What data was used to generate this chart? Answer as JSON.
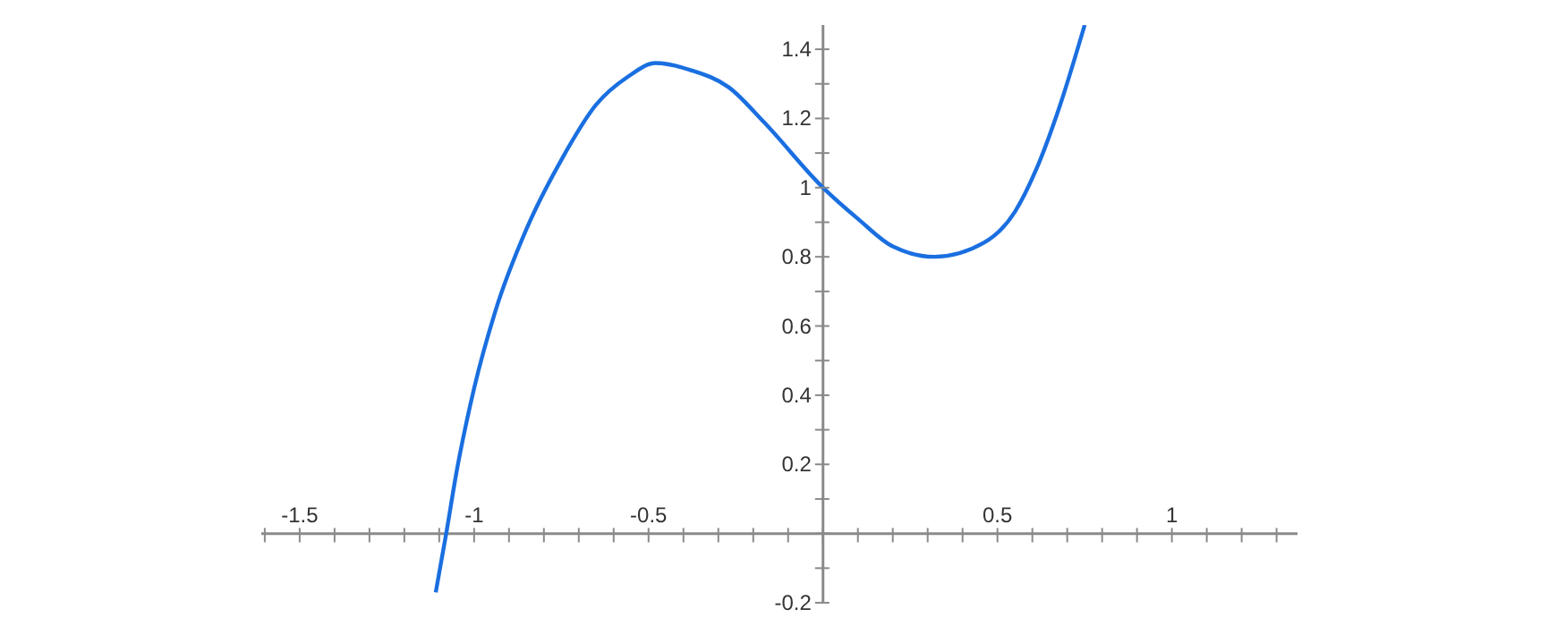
{
  "chart_data": {
    "type": "line",
    "color": "#1a6fe0",
    "line_style": "solid",
    "marker": "none",
    "grid": false,
    "x": [
      -1.11,
      -1.08,
      -1.05,
      -1.0,
      -0.94,
      -0.85,
      -0.75,
      -0.65,
      -0.56,
      -0.48,
      -0.38,
      -0.27,
      -0.17,
      0.0,
      0.1,
      0.2,
      0.32,
      0.46,
      0.55,
      0.61,
      0.68,
      0.75
    ],
    "values": [
      -0.17,
      0.0,
      0.18,
      0.42,
      0.64,
      0.88,
      1.08,
      1.24,
      1.32,
      1.36,
      1.34,
      1.29,
      1.19,
      1.0,
      0.91,
      0.83,
      0.8,
      0.84,
      0.93,
      1.05,
      1.24,
      1.47
    ],
    "xlim": [
      -1.61,
      1.36
    ],
    "ylim": [
      -0.2,
      1.47
    ],
    "xticks": [
      {
        "value": -1.6,
        "label": null
      },
      -1.5,
      {
        "value": -1.4,
        "label": null
      },
      {
        "value": -1.3,
        "label": null
      },
      {
        "value": -1.2,
        "label": null
      },
      {
        "value": -1.1,
        "label": null
      },
      -1,
      {
        "value": -0.9,
        "label": null
      },
      {
        "value": -0.8,
        "label": null
      },
      {
        "value": -0.7,
        "label": null
      },
      {
        "value": -0.6,
        "label": null
      },
      -0.5,
      {
        "value": -0.4,
        "label": null
      },
      {
        "value": -0.3,
        "label": null
      },
      {
        "value": -0.2,
        "label": null
      },
      {
        "value": -0.1,
        "label": null
      },
      {
        "value": 0,
        "label": null
      },
      {
        "value": 0.1,
        "label": null
      },
      {
        "value": 0.2,
        "label": null
      },
      {
        "value": 0.3,
        "label": null
      },
      {
        "value": 0.4,
        "label": null
      },
      0.5,
      {
        "value": 0.6,
        "label": null
      },
      {
        "value": 0.7,
        "label": null
      },
      {
        "value": 0.8,
        "label": null
      },
      {
        "value": 0.9,
        "label": null
      },
      1,
      {
        "value": 1.1,
        "label": null
      },
      {
        "value": 1.2,
        "label": null
      },
      {
        "value": 1.3,
        "label": null
      }
    ],
    "yticks": [
      -0.2,
      {
        "value": -0.1,
        "label": null
      },
      {
        "value": 0,
        "label": null
      },
      {
        "value": 0.1,
        "label": null
      },
      0.2,
      {
        "value": 0.3,
        "label": null
      },
      0.4,
      {
        "value": 0.5,
        "label": null
      },
      0.6,
      {
        "value": 0.7,
        "label": null
      },
      0.8,
      {
        "value": 0.9,
        "label": null
      },
      1,
      {
        "value": 1.1,
        "label": null
      },
      1.2,
      {
        "value": 1.3,
        "label": null
      },
      1.4
    ]
  }
}
